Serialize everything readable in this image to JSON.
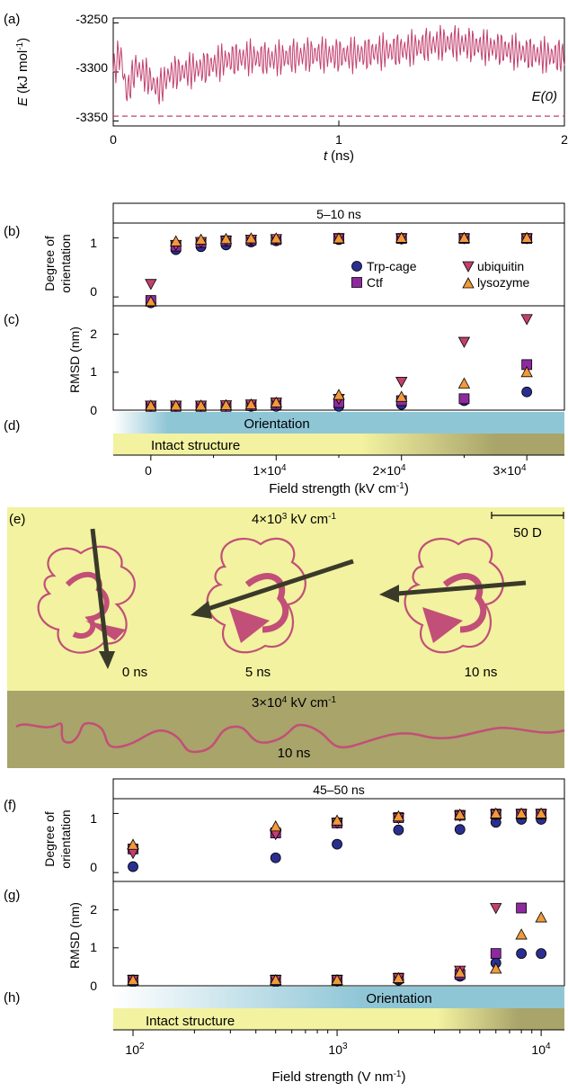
{
  "colors": {
    "energy_line": "#c2406e",
    "trp": "#2a2f8f",
    "ctf": "#8e2aa0",
    "ubq": "#c2406e",
    "lys": "#f09a3a",
    "yellow": "#f2f2a0",
    "olive": "#a8a46a",
    "blue": "#8fc6d6",
    "dark_olive": "#918e5c",
    "arrow": "#3a3a2a",
    "ribbon": "#c24f78"
  },
  "panel_a": {
    "letter": "(a)",
    "ylabel_sym": "E",
    "ylabel_unit": "(kJ mol",
    "ylabel_sup": "-1",
    "ylabel_close": ")",
    "xlabel_sym": "t",
    "xlabel_unit": "(ns)",
    "yticks": [
      "-3250",
      "-3300",
      "-3350"
    ],
    "xticks": [
      "0",
      "1",
      "2"
    ],
    "ref_label": "E(0)"
  },
  "panel_b": {
    "letter": "(b)",
    "title": "5–10 ns",
    "ylabel_1": "Degree of",
    "ylabel_2": "orientation",
    "yticks": [
      "0",
      "1"
    ]
  },
  "legend": {
    "trp": "Trp-cage",
    "ctf": "Ctf",
    "ubq": "ubiquitin",
    "lys": "lysozyme"
  },
  "panel_c": {
    "letter": "(c)",
    "ylabel": "RMSD (nm)",
    "yticks": [
      "0",
      "1",
      "2"
    ]
  },
  "panel_d": {
    "letter": "(d)",
    "orientation": "Orientation",
    "intact": "Intact structure"
  },
  "axis_top": {
    "xticks": [
      "0",
      "1×10",
      "2×10",
      "3×10"
    ],
    "xtick_sup": "4",
    "xlabel": "Field strength (kV cm",
    "xlabel_sup": "-1",
    "xlabel_close": ")"
  },
  "panel_e": {
    "letter": "(e)",
    "field1": "4×10",
    "field1_sup": "3",
    "field1_unit": " kV cm",
    "field1_unit_sup": "-1",
    "scale": "50 D",
    "t0": "0 ns",
    "t5": "5 ns",
    "t10": "10 ns",
    "field2": "3×10",
    "field2_sup": "4",
    "field2_unit": " kV cm",
    "field2_unit_sup": "-1",
    "t10b": "10 ns"
  },
  "panel_f": {
    "letter": "(f)",
    "title": "45–50 ns",
    "ylabel_1": "Degree of",
    "ylabel_2": "orientation",
    "yticks": [
      "0",
      "1"
    ]
  },
  "panel_g": {
    "letter": "(g)",
    "ylabel": "RMSD (nm)",
    "yticks": [
      "0",
      "1",
      "2"
    ]
  },
  "panel_h": {
    "letter": "(h)",
    "orientation": "Orientation",
    "intact": "Intact structure"
  },
  "axis_bottom": {
    "xticks": [
      "10",
      "10",
      "10"
    ],
    "xtick_sups": [
      "2",
      "3",
      "4"
    ],
    "xlabel": "Field strength (V nm",
    "xlabel_sup": "-1",
    "xlabel_close": ")"
  },
  "chart_data": [
    {
      "type": "line",
      "panel": "a",
      "xlabel": "t (ns)",
      "ylabel": "E (kJ mol-1)",
      "xlim": [
        0,
        2
      ],
      "ylim": [
        -3355,
        -3245
      ],
      "reference_line": {
        "label": "E(0)",
        "y": -3345
      },
      "series": [
        {
          "x": [
            0,
            0.03,
            0.06,
            0.1,
            0.15,
            0.2,
            0.25,
            0.3,
            0.4,
            0.5,
            0.6,
            0.7,
            0.8,
            0.9,
            1.0,
            1.1,
            1.2,
            1.3,
            1.4,
            1.5,
            1.6,
            1.7,
            1.8,
            1.9,
            2.0
          ],
          "y": [
            -3300,
            -3280,
            -3322,
            -3295,
            -3305,
            -3318,
            -3302,
            -3300,
            -3296,
            -3288,
            -3285,
            -3287,
            -3284,
            -3282,
            -3283,
            -3282,
            -3279,
            -3277,
            -3272,
            -3270,
            -3273,
            -3276,
            -3280,
            -3283,
            -3284
          ]
        }
      ]
    },
    {
      "type": "scatter",
      "panel": "b",
      "title": "5–10 ns",
      "xlabel": "Field strength (kV cm-1)",
      "ylabel": "Degree of orientation",
      "xlim": [
        -3000,
        33000
      ],
      "ylim": [
        -0.15,
        1.25
      ],
      "x": [
        0,
        2000,
        4000,
        6000,
        8000,
        10000,
        15000,
        20000,
        25000,
        30000
      ],
      "series": [
        {
          "name": "Trp-cage",
          "values": [
            -0.1,
            0.8,
            0.85,
            0.88,
            0.93,
            0.95,
            0.97,
            0.98,
            0.99,
            0.99
          ]
        },
        {
          "name": "Ctf",
          "values": [
            -0.06,
            0.86,
            0.92,
            0.95,
            0.96,
            0.97,
            0.99,
            0.99,
            0.99,
            0.99
          ]
        },
        {
          "name": "ubiquitin",
          "values": [
            0.22,
            0.88,
            0.93,
            0.95,
            0.97,
            0.98,
            0.99,
            0.99,
            0.99,
            0.99
          ]
        },
        {
          "name": "lysozyme",
          "values": [
            -0.08,
            0.94,
            0.97,
            0.98,
            0.99,
            0.99,
            0.99,
            1.0,
            1.0,
            1.0
          ]
        }
      ]
    },
    {
      "type": "scatter",
      "panel": "c",
      "xlabel": "Field strength (kV cm-1)",
      "ylabel": "RMSD (nm)",
      "xlim": [
        -3000,
        33000
      ],
      "ylim": [
        0,
        2.75
      ],
      "x": [
        0,
        2000,
        4000,
        6000,
        8000,
        10000,
        15000,
        20000,
        25000,
        30000
      ],
      "series": [
        {
          "name": "Trp-cage",
          "values": [
            0.1,
            0.1,
            0.1,
            0.1,
            0.1,
            0.1,
            0.1,
            0.15,
            0.25,
            0.48
          ]
        },
        {
          "name": "Ctf",
          "values": [
            0.1,
            0.1,
            0.1,
            0.1,
            0.12,
            0.15,
            0.2,
            0.25,
            0.3,
            1.2
          ]
        },
        {
          "name": "ubiquitin",
          "values": [
            0.12,
            0.12,
            0.12,
            0.13,
            0.15,
            0.2,
            0.3,
            0.75,
            1.8,
            2.4
          ]
        },
        {
          "name": "lysozyme",
          "values": [
            0.12,
            0.12,
            0.12,
            0.13,
            0.15,
            0.2,
            0.4,
            0.35,
            0.7,
            1.0
          ]
        }
      ]
    },
    {
      "type": "scatter",
      "panel": "f",
      "title": "45–50 ns",
      "xlabel": "Field strength (V nm-1)",
      "ylabel": "Degree of orientation",
      "xscale": "log",
      "xlim": [
        80,
        13000
      ],
      "ylim": [
        -0.15,
        1.25
      ],
      "x": [
        100,
        500,
        1000,
        2000,
        4000,
        6000,
        8000,
        10000
      ],
      "series": [
        {
          "name": "Trp-cage",
          "values": [
            0.1,
            0.25,
            0.48,
            0.72,
            0.73,
            0.85,
            0.9,
            0.9
          ]
        },
        {
          "name": "Ctf",
          "values": [
            0.4,
            0.67,
            0.84,
            0.93,
            0.97,
            0.99,
            0.99,
            0.99
          ]
        },
        {
          "name": "ubiquitin",
          "values": [
            0.33,
            0.65,
            0.84,
            0.92,
            0.96,
            0.98,
            0.99,
            0.99
          ]
        },
        {
          "name": "lysozyme",
          "values": [
            0.47,
            0.78,
            0.88,
            0.95,
            0.98,
            1.0,
            1.0,
            1.0
          ]
        }
      ]
    },
    {
      "type": "scatter",
      "panel": "g",
      "xlabel": "Field strength (V nm-1)",
      "ylabel": "RMSD (nm)",
      "xscale": "log",
      "xlim": [
        80,
        13000
      ],
      "ylim": [
        0,
        2.75
      ],
      "x": [
        100,
        500,
        1000,
        2000,
        4000,
        6000,
        8000,
        10000
      ],
      "series": [
        {
          "name": "Trp-cage",
          "values": [
            0.1,
            0.1,
            0.12,
            0.15,
            0.25,
            0.6,
            0.85,
            0.85
          ]
        },
        {
          "name": "Ctf",
          "values": [
            0.15,
            0.15,
            0.15,
            0.2,
            0.3,
            0.85,
            2.05,
            null
          ]
        },
        {
          "name": "ubiquitin",
          "values": [
            0.15,
            0.15,
            0.15,
            0.2,
            0.4,
            2.05,
            null,
            null
          ]
        },
        {
          "name": "lysozyme",
          "values": [
            0.15,
            0.15,
            0.15,
            0.2,
            0.35,
            0.45,
            1.35,
            1.8
          ]
        }
      ]
    }
  ]
}
